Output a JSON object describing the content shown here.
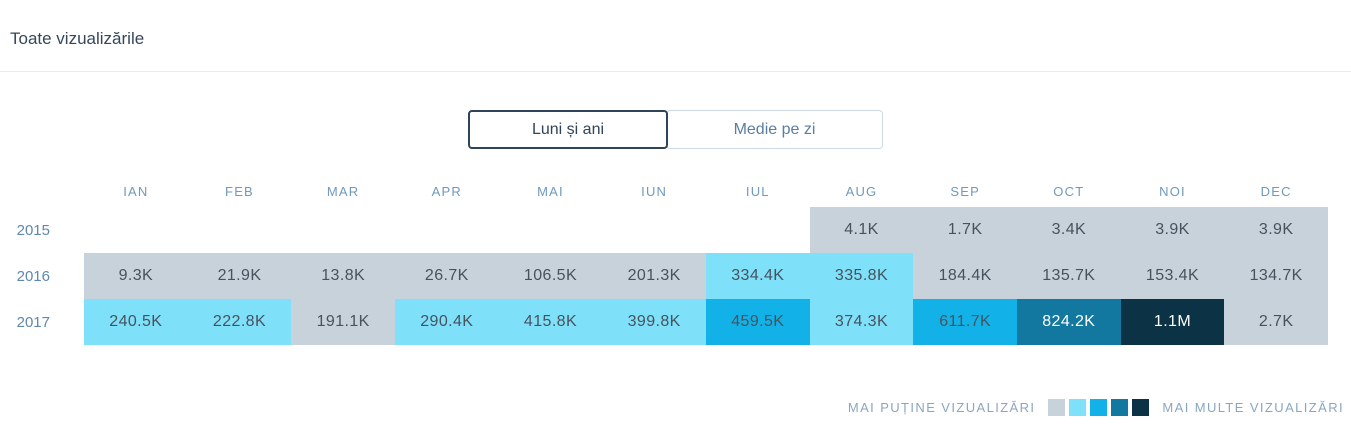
{
  "header": {
    "title": "Toate vizualizările"
  },
  "toggle": {
    "options": [
      {
        "label": "Luni și ani",
        "active": true
      },
      {
        "label": "Medie pe zi",
        "active": false
      }
    ]
  },
  "chart_data": {
    "type": "heatmap",
    "title": "Toate vizualizările",
    "columns": [
      "IAN",
      "FEB",
      "MAR",
      "APR",
      "MAI",
      "IUN",
      "IUL",
      "AUG",
      "SEP",
      "OCT",
      "NOI",
      "DEC"
    ],
    "rows": [
      {
        "year": "2015",
        "values": [
          null,
          null,
          null,
          null,
          null,
          null,
          null,
          "4.1K",
          "1.7K",
          "3.4K",
          "3.9K",
          "3.9K"
        ],
        "levels": [
          null,
          null,
          null,
          null,
          null,
          null,
          null,
          0,
          0,
          0,
          0,
          0
        ]
      },
      {
        "year": "2016",
        "values": [
          "9.3K",
          "21.9K",
          "13.8K",
          "26.7K",
          "106.5K",
          "201.3K",
          "334.4K",
          "335.8K",
          "184.4K",
          "135.7K",
          "153.4K",
          "134.7K"
        ],
        "levels": [
          0,
          0,
          0,
          0,
          0,
          0,
          1,
          1,
          0,
          0,
          0,
          0
        ]
      },
      {
        "year": "2017",
        "values": [
          "240.5K",
          "222.8K",
          "191.1K",
          "290.4K",
          "415.8K",
          "399.8K",
          "459.5K",
          "374.3K",
          "611.7K",
          "824.2K",
          "1.1M",
          "2.7K"
        ],
        "levels": [
          1,
          1,
          0,
          1,
          1,
          1,
          2,
          1,
          2,
          3,
          4,
          0
        ]
      }
    ],
    "palette": [
      "#c8d2db",
      "#7fe0fa",
      "#12b2e9",
      "#12789f",
      "#0c3245"
    ],
    "white_text_from_level": 3,
    "legend": {
      "less_label": "MAI PUȚINE VIZUALIZĂRI",
      "more_label": "MAI MULTE VIZUALIZĂRI",
      "position": "bottom-right"
    }
  }
}
